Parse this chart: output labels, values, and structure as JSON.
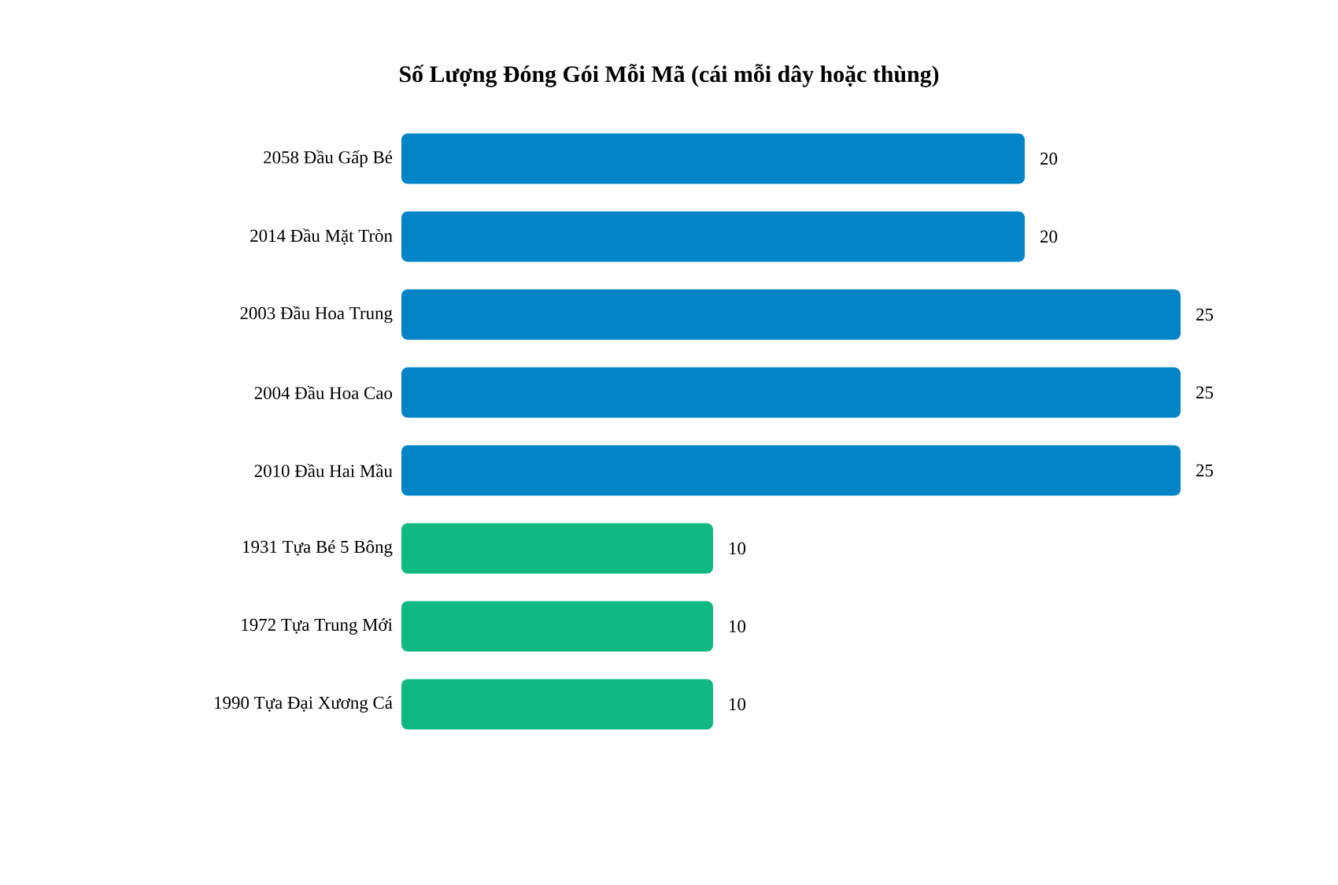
{
  "chart_data": {
    "type": "bar",
    "orientation": "horizontal",
    "title": "Số Lượng Đóng Gói Mỗi Mã (cái mỗi dây hoặc thùng)",
    "categories": [
      "2058 Đầu Gấp Bé",
      "2014 Đầu Mặt Tròn",
      "2003 Đầu Hoa Trung",
      "2004 Đầu Hoa Cao",
      "2010 Đầu Hai Mầu",
      "1931 Tựa Bé 5 Bông",
      "1972 Tựa Trung Mới",
      "1990 Tựa Đại Xương Cá"
    ],
    "values": [
      20,
      20,
      25,
      25,
      25,
      10,
      10,
      10
    ],
    "colors": [
      "#0284c7",
      "#0284c7",
      "#0284c7",
      "#0284c7",
      "#0284c7",
      "#10b981",
      "#10b981",
      "#10b981"
    ],
    "data_labels": true
  }
}
